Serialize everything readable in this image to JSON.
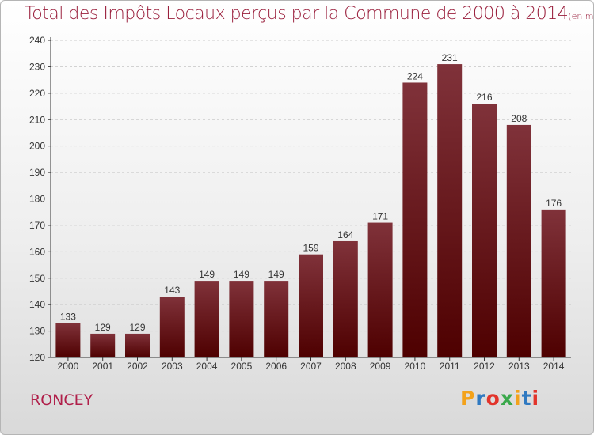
{
  "header": {
    "title": "Total des Impôts Locaux perçus par la Commune de 2000 à 2014",
    "unit": "(en milliers d'€)"
  },
  "footer": {
    "commune": "RONCEY",
    "logo_letters": [
      "P",
      "r",
      "o",
      "x",
      "i",
      "t",
      "i"
    ],
    "logo_colors": [
      "#f3a21b",
      "#2f79c1",
      "#e2342b",
      "#3aa84b",
      "#f3a21b",
      "#2f79c1",
      "#e2342b"
    ]
  },
  "colors": {
    "bar_top": "#80323a",
    "bar_bottom": "#4e0000",
    "axis": "#333333",
    "grid": "#cccccc"
  },
  "chart_data": {
    "type": "bar",
    "title": "Total des Impôts Locaux perçus par la Commune de 2000 à 2014",
    "xlabel": "",
    "ylabel": "",
    "categories": [
      "2000",
      "2001",
      "2002",
      "2003",
      "2004",
      "2005",
      "2006",
      "2007",
      "2008",
      "2009",
      "2010",
      "2011",
      "2012",
      "2013",
      "2014"
    ],
    "values": [
      133,
      129,
      129,
      143,
      149,
      149,
      149,
      159,
      164,
      171,
      224,
      231,
      216,
      208,
      176
    ],
    "ylim": [
      120,
      240
    ],
    "yticks": [
      120,
      130,
      140,
      150,
      160,
      170,
      180,
      190,
      200,
      210,
      220,
      230,
      240
    ],
    "grid": true
  }
}
